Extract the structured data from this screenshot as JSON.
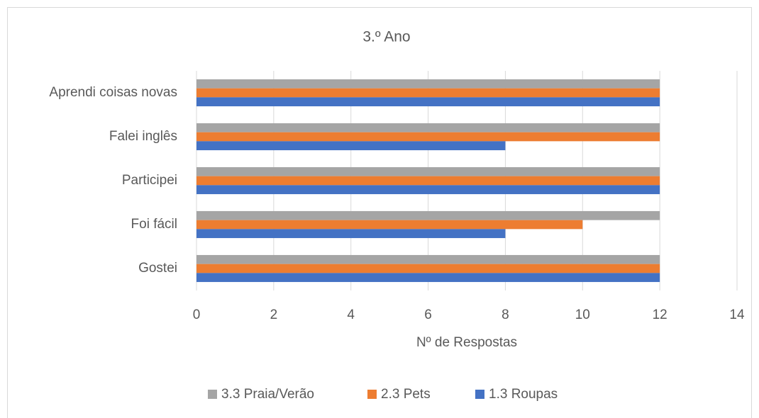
{
  "chart_data": {
    "type": "hbar",
    "title": "3.º Ano",
    "categories": [
      "Gostei",
      "Foi fácil",
      "Participei",
      "Falei inglês",
      "Aprendi coisas novas"
    ],
    "series": [
      {
        "name": "3.3 Praia/Verão",
        "color": "#a5a5a5",
        "values": [
          12,
          12,
          12,
          12,
          12
        ]
      },
      {
        "name": "2.3 Pets",
        "color": "#ed7d31",
        "values": [
          12,
          10,
          12,
          12,
          12
        ]
      },
      {
        "name": "1.3 Roupas",
        "color": "#4472c4",
        "values": [
          12,
          8,
          12,
          8,
          12
        ]
      }
    ],
    "x_label": "Nº de Respostas",
    "xlim": [
      0,
      14
    ],
    "xticks": [
      0,
      2,
      4,
      6,
      8,
      10,
      12,
      14
    ],
    "grid": true,
    "legend": "bottom"
  }
}
